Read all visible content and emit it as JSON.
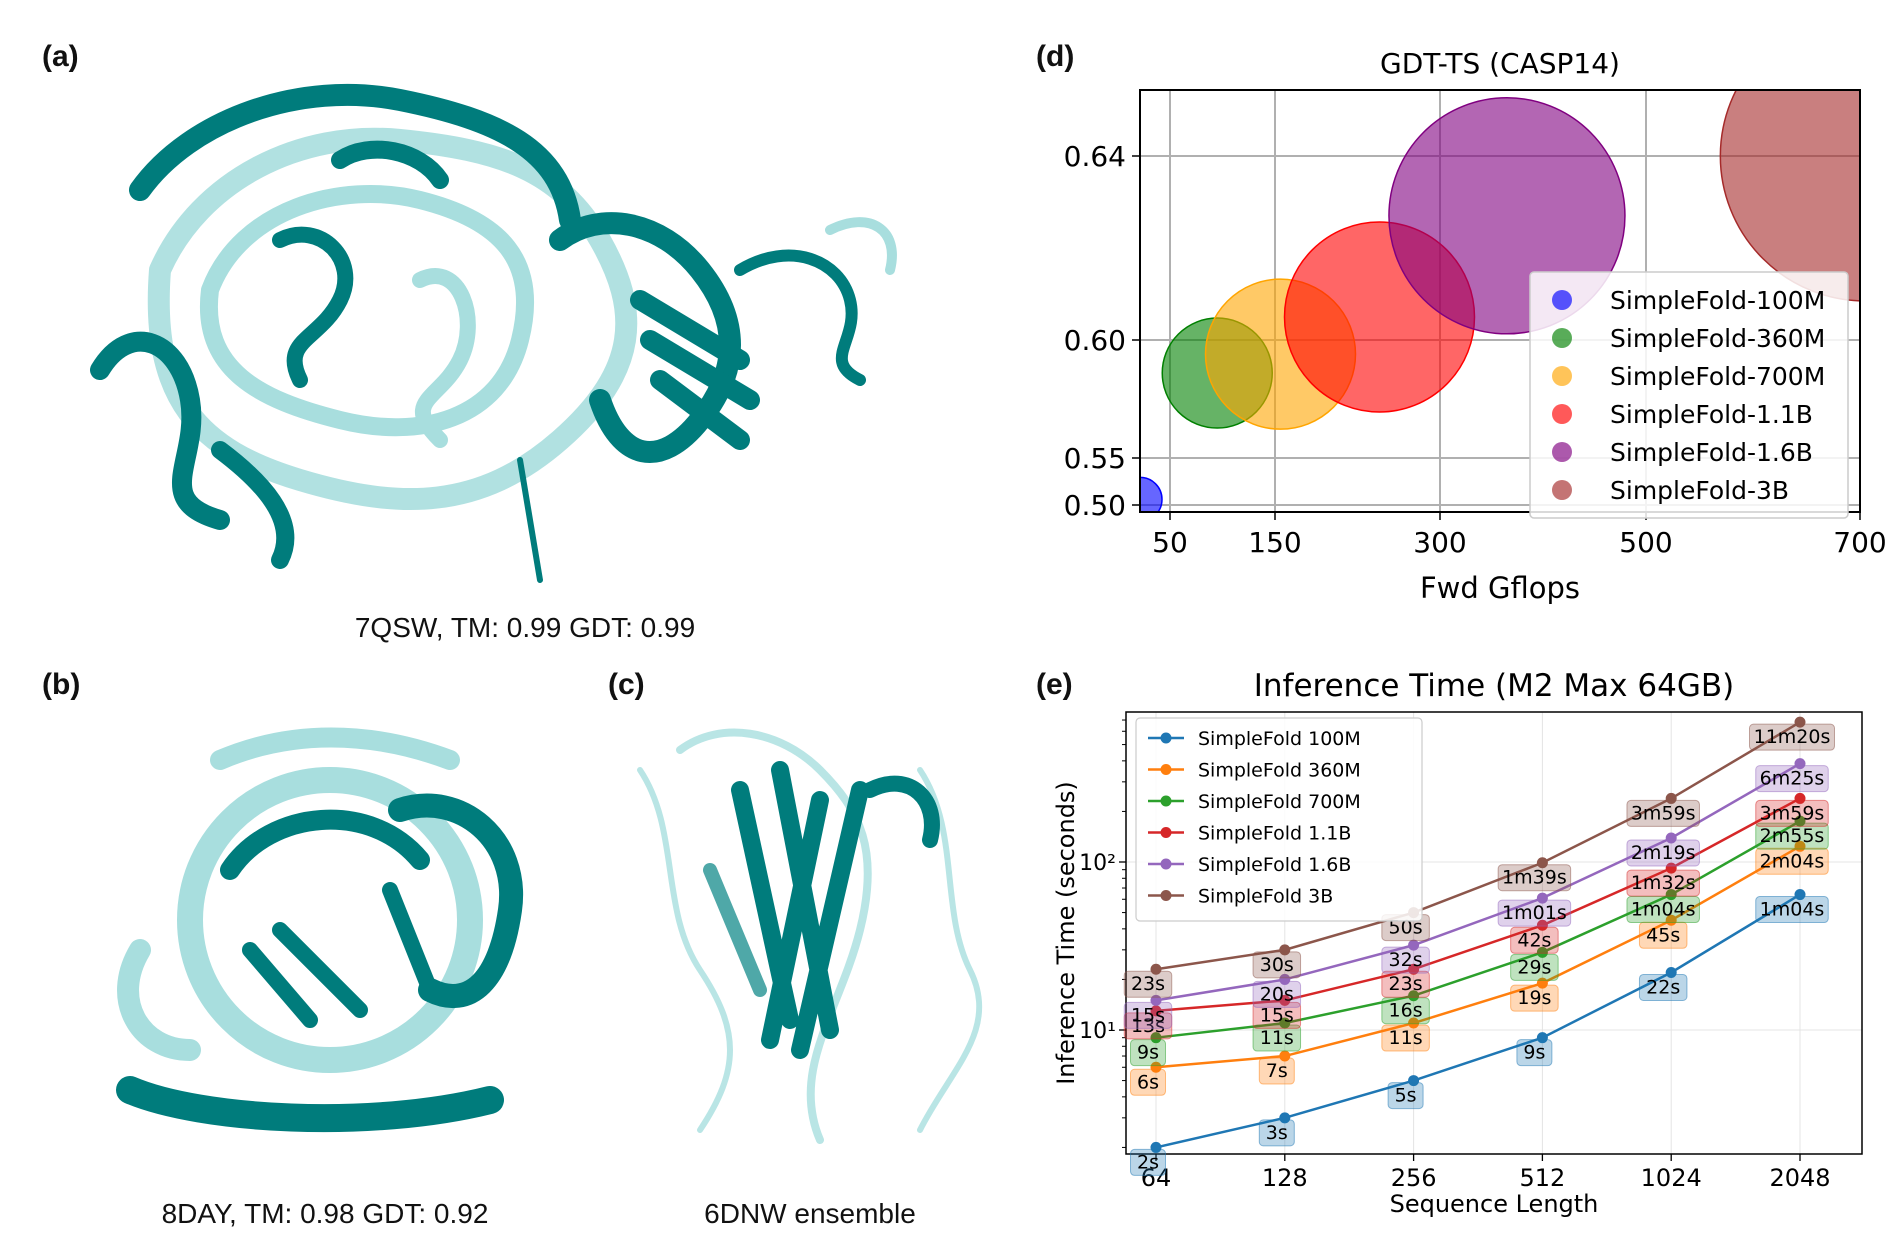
{
  "figure": {
    "panel_labels": [
      "(a)",
      "(b)",
      "(c)",
      "(d)",
      "(e)"
    ],
    "captions": {
      "a": "7QSW, TM: 0.99 GDT: 0.99",
      "b": "8DAY, TM: 0.98 GDT: 0.92",
      "c": "6DNW ensemble"
    },
    "colors": {
      "dark_teal": "#007c7c",
      "light_teal": "#a8dede"
    }
  },
  "chart_data": [
    {
      "type": "scatter",
      "title": "GDT-TS (CASP14)",
      "xlabel": "Fwd Gflops",
      "ylabel": "",
      "xticks": [
        50,
        150,
        300,
        500,
        700
      ],
      "yticks": [
        0.5,
        0.55,
        0.6,
        0.64
      ],
      "ytick_labels": [
        "0.50",
        "0.55",
        "0.60",
        "0.64"
      ],
      "grid": true,
      "legend_position": "lower-right",
      "series": [
        {
          "name": "SimpleFold-100M",
          "x": 40,
          "y": 0.506,
          "color": "#0000ff"
        },
        {
          "name": "SimpleFold-360M",
          "x": 95,
          "y": 0.586,
          "color": "#008000"
        },
        {
          "name": "SimpleFold-700M",
          "x": 155,
          "y": 0.594,
          "color": "#ffa500"
        },
        {
          "name": "SimpleFold-1.1B",
          "x": 245,
          "y": 0.605,
          "color": "#ff0000"
        },
        {
          "name": "SimpleFold-1.6B",
          "x": 365,
          "y": 0.627,
          "color": "#800080"
        },
        {
          "name": "SimpleFold-3B",
          "x": 705,
          "y": 0.64,
          "color": "#a52a2a"
        }
      ]
    },
    {
      "type": "line",
      "title": "Inference Time (M2 Max 64GB)",
      "xlabel": "Sequence Length",
      "ylabel": "Inference Time (seconds)",
      "x": [
        64,
        128,
        256,
        512,
        1024,
        2048
      ],
      "x_labels": [
        "64",
        "128",
        "256",
        "512",
        "1024",
        "2048"
      ],
      "x_scale": "log2",
      "y_scale": "log10",
      "yticks": [
        "10¹",
        "10²"
      ],
      "grid": true,
      "legend_position": "top-left",
      "series": [
        {
          "name": "SimpleFold 100M",
          "color": "#1f77b4",
          "values": [
            2,
            3,
            5,
            9,
            22,
            64
          ],
          "labels": [
            "2s",
            "3s",
            "5s",
            "9s",
            "22s",
            "1m04s"
          ]
        },
        {
          "name": "SimpleFold 360M",
          "color": "#ff7f0e",
          "values": [
            6,
            7,
            11,
            19,
            45,
            124
          ],
          "labels": [
            "6s",
            "7s",
            "11s",
            "19s",
            "45s",
            "2m04s"
          ]
        },
        {
          "name": "SimpleFold 700M",
          "color": "#2ca02c",
          "values": [
            9,
            11,
            16,
            29,
            64,
            175
          ],
          "labels": [
            "9s",
            "11s",
            "16s",
            "29s",
            "1m04s",
            "2m55s"
          ]
        },
        {
          "name": "SimpleFold 1.1B",
          "color": "#d62728",
          "values": [
            13,
            15,
            23,
            42,
            92,
            239
          ],
          "labels": [
            "13s",
            "15s",
            "23s",
            "42s",
            "1m32s",
            "3m59s"
          ]
        },
        {
          "name": "SimpleFold 1.6B",
          "color": "#9467bd",
          "values": [
            15,
            20,
            32,
            61,
            139,
            385
          ],
          "labels": [
            "15s",
            "20s",
            "32s",
            "1m01s",
            "2m19s",
            "6m25s"
          ]
        },
        {
          "name": "SimpleFold 3B",
          "color": "#8c564b",
          "values": [
            23,
            30,
            50,
            99,
            239,
            680
          ],
          "labels": [
            "23s",
            "30s",
            "50s",
            "1m39s",
            "3m59s",
            "11m20s"
          ]
        }
      ]
    }
  ]
}
